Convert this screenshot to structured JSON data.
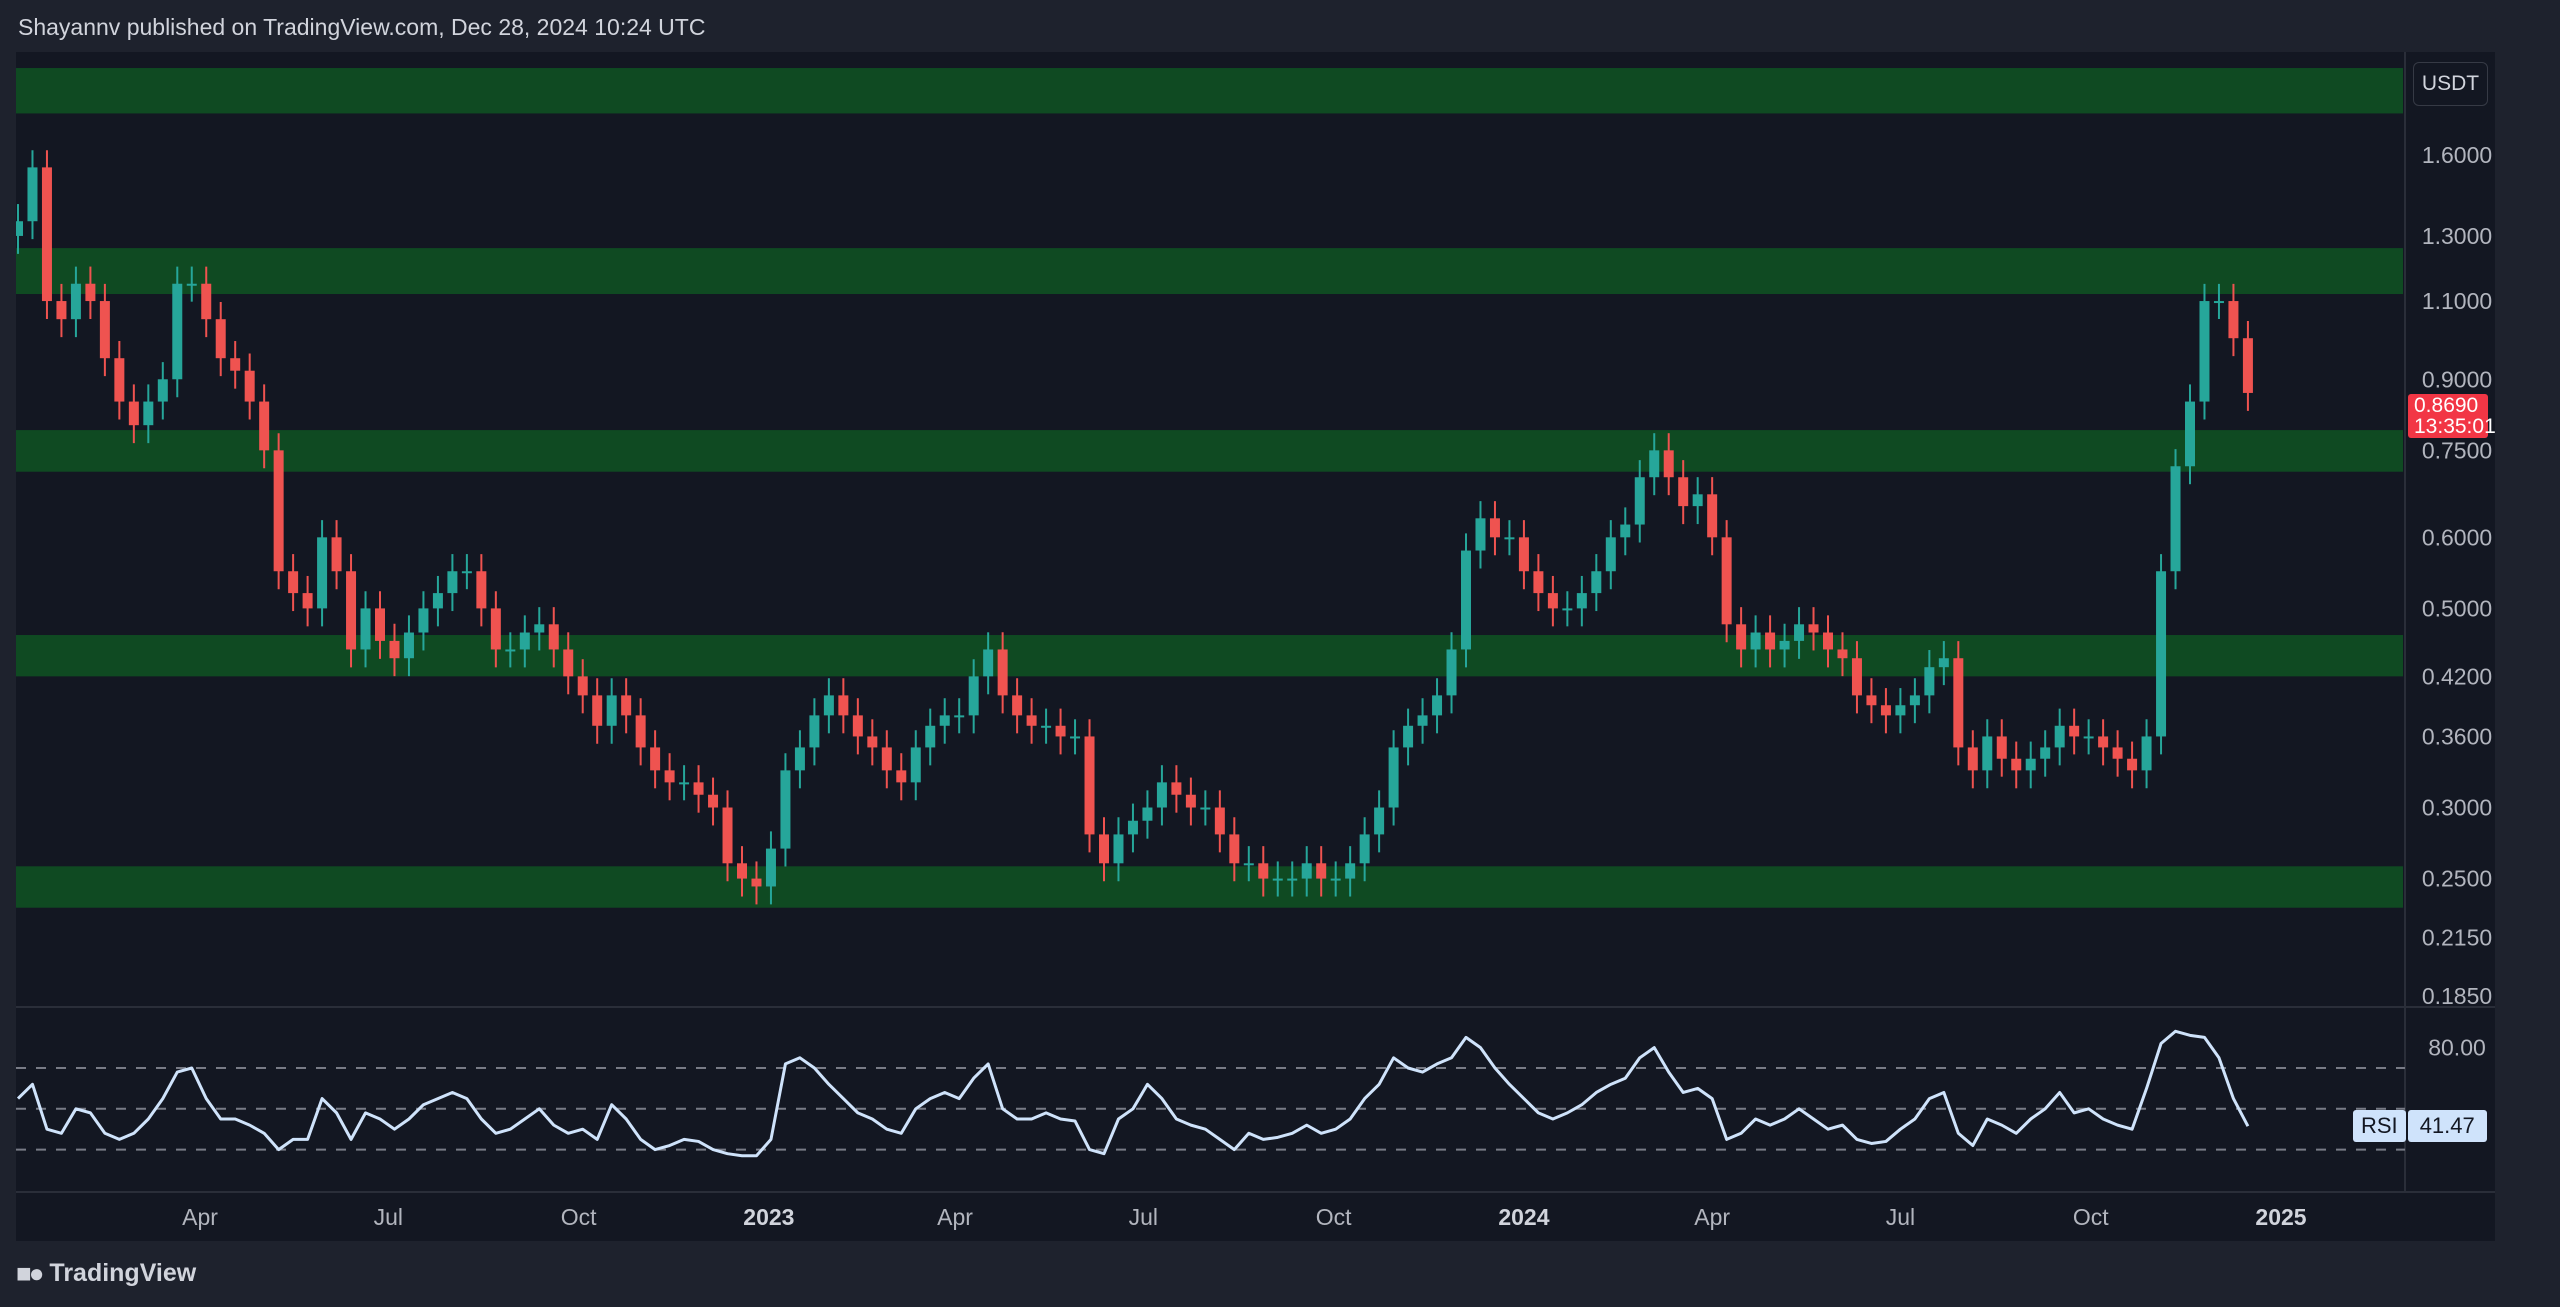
{
  "header": {
    "text": "Shayannv published on TradingView.com, Dec 28, 2024 10:24 UTC"
  },
  "footer": {
    "brand": "TradingView",
    "logo_icon": "tradingview-logo-icon"
  },
  "colors": {
    "up": "#26a69a",
    "down": "#ef5350",
    "zone": "#0f4a22",
    "rsi": "#cfe3fb",
    "price_tag": "#f23645"
  },
  "chart_data": [
    {
      "type": "candlestick",
      "currency": "USDT",
      "y_scale": "log",
      "ylim": [
        0.175,
        2.1
      ],
      "y_ticks": [
        "1.6000",
        "1.3000",
        "1.1000",
        "0.9000",
        "0.7500",
        "0.6000",
        "0.5000",
        "0.4200",
        "0.3600",
        "0.3000",
        "0.2500",
        "0.2150",
        "0.1850"
      ],
      "y_tick_values": [
        1.6,
        1.3,
        1.1,
        0.9,
        0.75,
        0.6,
        0.5,
        0.42,
        0.36,
        0.3,
        0.25,
        0.215,
        0.185
      ],
      "x_range": [
        "2022-01-03",
        "2025-03-10"
      ],
      "x_ticks": [
        {
          "label": "Apr",
          "date": "2022-04-01",
          "year": false
        },
        {
          "label": "Jul",
          "date": "2022-07-01",
          "year": false
        },
        {
          "label": "Oct",
          "date": "2022-10-01",
          "year": false
        },
        {
          "label": "2023",
          "date": "2023-01-01",
          "year": true
        },
        {
          "label": "Apr",
          "date": "2023-04-01",
          "year": false
        },
        {
          "label": "Jul",
          "date": "2023-07-01",
          "year": false
        },
        {
          "label": "Oct",
          "date": "2023-10-01",
          "year": false
        },
        {
          "label": "2024",
          "date": "2024-01-01",
          "year": true
        },
        {
          "label": "Apr",
          "date": "2024-04-01",
          "year": false
        },
        {
          "label": "Jul",
          "date": "2024-07-01",
          "year": false
        },
        {
          "label": "Oct",
          "date": "2024-10-01",
          "year": false
        },
        {
          "label": "2025",
          "date": "2025-01-01",
          "year": true
        }
      ],
      "first_period": "2022-01-03",
      "period": "weekly approximation",
      "open_first": 1.3,
      "closes": [
        1.35,
        1.55,
        1.1,
        1.05,
        1.15,
        1.1,
        0.95,
        0.85,
        0.8,
        0.85,
        0.9,
        1.15,
        1.15,
        1.05,
        0.95,
        0.92,
        0.85,
        0.75,
        0.55,
        0.52,
        0.5,
        0.6,
        0.55,
        0.45,
        0.5,
        0.46,
        0.44,
        0.47,
        0.5,
        0.52,
        0.55,
        0.55,
        0.5,
        0.45,
        0.45,
        0.47,
        0.48,
        0.45,
        0.42,
        0.4,
        0.37,
        0.4,
        0.38,
        0.35,
        0.33,
        0.32,
        0.32,
        0.31,
        0.3,
        0.26,
        0.25,
        0.245,
        0.27,
        0.33,
        0.35,
        0.38,
        0.4,
        0.38,
        0.36,
        0.35,
        0.33,
        0.32,
        0.35,
        0.37,
        0.38,
        0.38,
        0.42,
        0.45,
        0.4,
        0.38,
        0.37,
        0.37,
        0.36,
        0.36,
        0.28,
        0.26,
        0.28,
        0.29,
        0.3,
        0.32,
        0.31,
        0.3,
        0.3,
        0.28,
        0.26,
        0.26,
        0.25,
        0.25,
        0.25,
        0.26,
        0.25,
        0.25,
        0.26,
        0.28,
        0.3,
        0.35,
        0.37,
        0.38,
        0.4,
        0.45,
        0.58,
        0.63,
        0.6,
        0.6,
        0.55,
        0.52,
        0.5,
        0.5,
        0.52,
        0.55,
        0.6,
        0.62,
        0.7,
        0.75,
        0.7,
        0.65,
        0.67,
        0.6,
        0.48,
        0.45,
        0.47,
        0.45,
        0.46,
        0.48,
        0.47,
        0.45,
        0.44,
        0.4,
        0.39,
        0.38,
        0.39,
        0.4,
        0.43,
        0.44,
        0.35,
        0.33,
        0.36,
        0.34,
        0.33,
        0.34,
        0.35,
        0.37,
        0.36,
        0.36,
        0.35,
        0.34,
        0.33,
        0.36,
        0.55,
        0.72,
        0.85,
        1.1,
        1.1,
        1.0,
        0.869
      ],
      "last_price": "0.8690",
      "countdown": "13:35:01",
      "zones": [
        [
          1.78,
          2.0
        ],
        [
          1.12,
          1.26
        ],
        [
          0.71,
          0.79
        ],
        [
          0.42,
          0.467
        ],
        [
          0.232,
          0.258
        ]
      ]
    },
    {
      "type": "line",
      "name": "RSI",
      "ylim": [
        15,
        95
      ],
      "levels": [
        70,
        50,
        30
      ],
      "y_ticks": [
        "80.00"
      ],
      "y_tick_values": [
        80
      ],
      "last_value": "41.47",
      "values": [
        55,
        62,
        40,
        38,
        50,
        48,
        38,
        35,
        38,
        45,
        55,
        68,
        70,
        55,
        45,
        45,
        42,
        38,
        30,
        35,
        35,
        55,
        48,
        35,
        48,
        45,
        40,
        45,
        52,
        55,
        58,
        55,
        45,
        38,
        40,
        45,
        50,
        42,
        38,
        40,
        35,
        52,
        45,
        35,
        30,
        32,
        35,
        34,
        30,
        28,
        27,
        27,
        35,
        72,
        75,
        70,
        62,
        55,
        48,
        45,
        40,
        38,
        50,
        55,
        58,
        55,
        65,
        72,
        50,
        45,
        45,
        48,
        45,
        44,
        30,
        28,
        45,
        50,
        62,
        55,
        45,
        42,
        40,
        35,
        30,
        38,
        35,
        36,
        38,
        42,
        38,
        40,
        45,
        55,
        62,
        75,
        70,
        68,
        72,
        75,
        85,
        80,
        70,
        62,
        55,
        48,
        45,
        48,
        52,
        58,
        62,
        65,
        75,
        80,
        68,
        58,
        60,
        55,
        35,
        38,
        45,
        42,
        45,
        50,
        45,
        40,
        42,
        35,
        33,
        34,
        40,
        45,
        55,
        58,
        38,
        32,
        45,
        42,
        38,
        45,
        50,
        58,
        48,
        50,
        45,
        42,
        40,
        60,
        82,
        88,
        86,
        85,
        75,
        55,
        41.47
      ]
    }
  ]
}
